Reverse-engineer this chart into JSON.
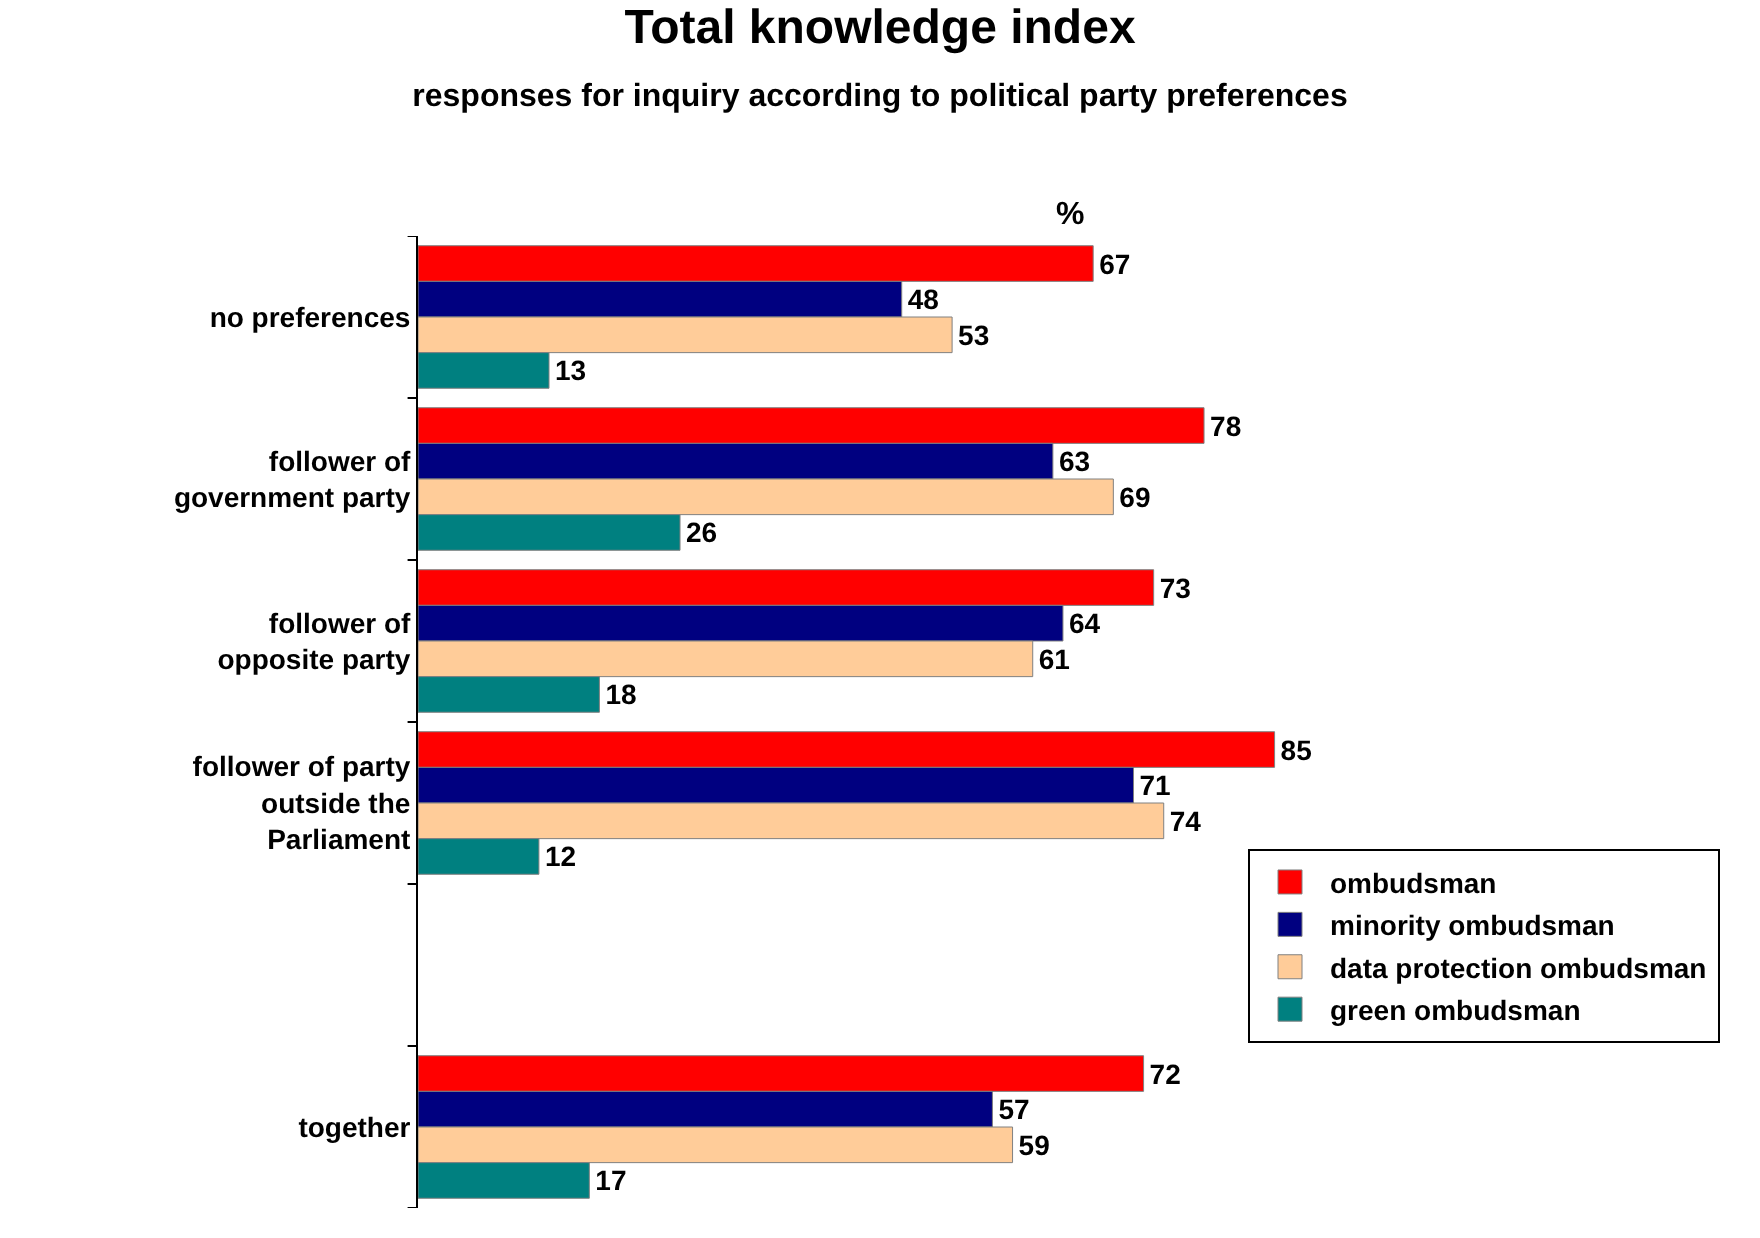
{
  "chart_data": {
    "type": "bar",
    "orientation": "horizontal",
    "title": "Total knowledge index",
    "subtitle": "responses for inquiry according to political party preferences",
    "annotations": [
      "%"
    ],
    "categories": [
      "no preferences",
      "follower of government party",
      "follower of opposite party",
      "follower of party outside the Parliament",
      null,
      "together"
    ],
    "series": [
      {
        "name": "ombudsman",
        "color": "#ff0000",
        "values": [
          67,
          78,
          73,
          85,
          null,
          72
        ]
      },
      {
        "name": "minority ombudsman",
        "color": "#000080",
        "values": [
          48,
          63,
          64,
          71,
          null,
          57
        ]
      },
      {
        "name": "data protection ombudsman",
        "color": "#ffcc99",
        "values": [
          53,
          69,
          61,
          74,
          null,
          59
        ]
      },
      {
        "name": "green ombudsman",
        "color": "#008080",
        "values": [
          13,
          26,
          18,
          12,
          null,
          17
        ]
      }
    ],
    "data_labels": true,
    "legend": "bottom right"
  }
}
